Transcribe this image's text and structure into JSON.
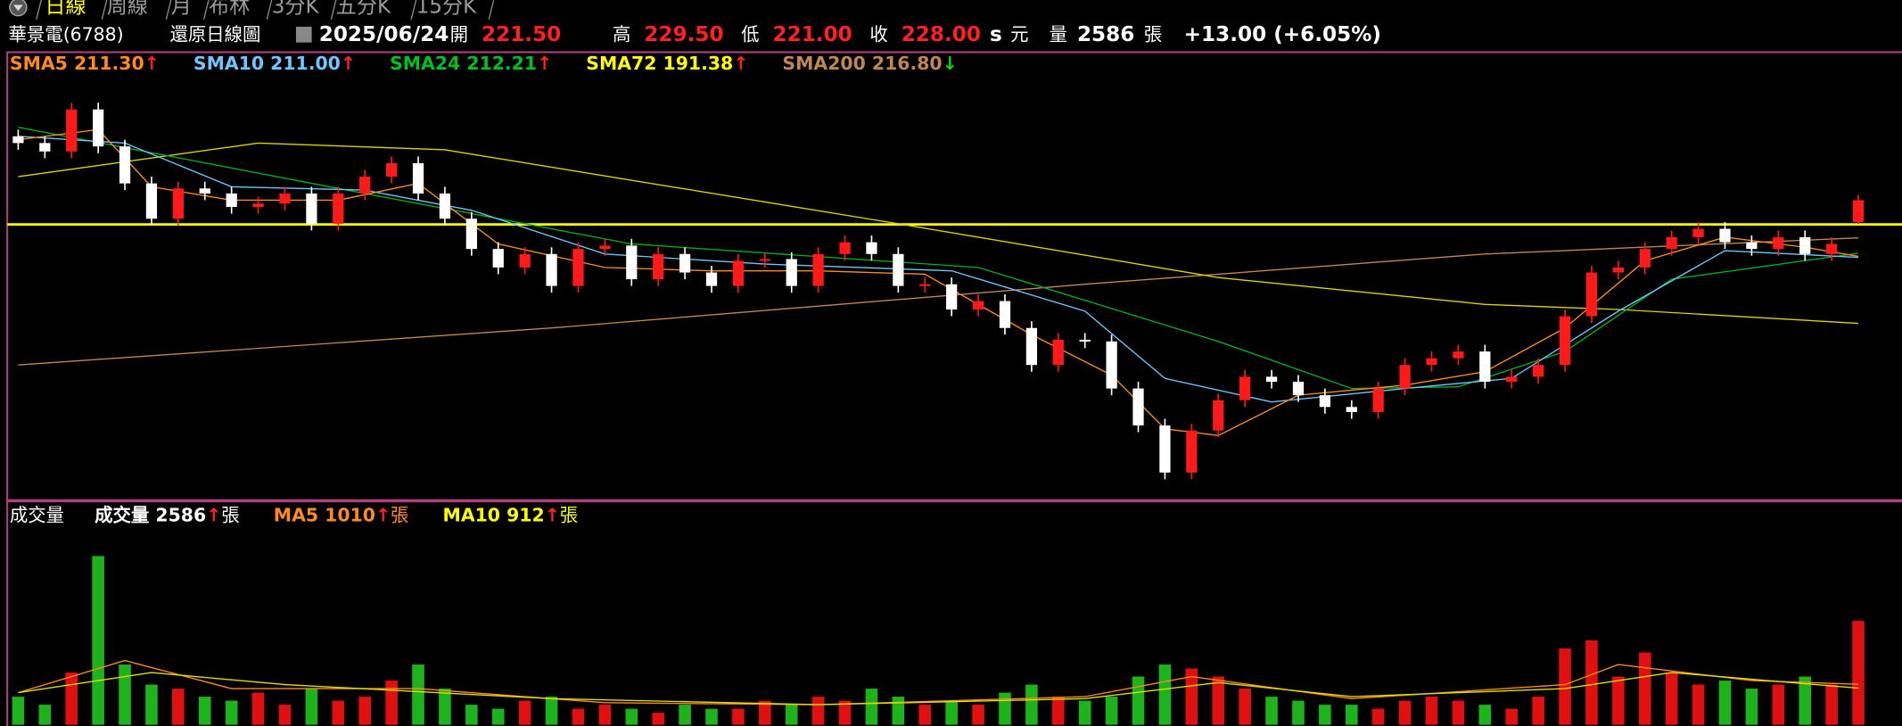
{
  "tabs": [
    "日線",
    "周線",
    "月",
    "布林",
    "3分K",
    "五分K",
    "15分K"
  ],
  "header": {
    "stock": "華景電(6788)",
    "mode": "還原日線圖",
    "date": "2025/06/24",
    "open_label": "開",
    "open": "221.50",
    "high_label": "高",
    "high": "229.50",
    "low_label": "低",
    "low": "221.00",
    "close_label": "收",
    "close": "228.00",
    "s": "s",
    "currency": "元",
    "volume_label": "量",
    "volume": "2586",
    "unit": "張",
    "change": "+13.00 (+6.05%)"
  },
  "chart_data": [
    {
      "type": "candlestick",
      "legend": [
        {
          "label": "SMA5 211.30",
          "trend": "↑",
          "color": "#ff8c1a",
          "trend_color": "#ff2020"
        },
        {
          "label": "SMA10 211.00",
          "trend": "↑",
          "color": "#6ec6ff",
          "trend_color": "#ff2020"
        },
        {
          "label": "SMA24 212.21",
          "trend": "↑",
          "color": "#00c020",
          "trend_color": "#ff2020"
        },
        {
          "label": "SMA72 191.38",
          "trend": "↑",
          "color": "#ffff00",
          "trend_color": "#ff2020"
        },
        {
          "label": "SMA200 216.80",
          "trend": "↓",
          "color": "#c08850",
          "trend_color": "#00e000"
        }
      ],
      "ylim": [
        139.5,
        271.3
      ],
      "up_color": "#ff1a1a",
      "down_color": "#ffffff",
      "reference_line": 220.8,
      "reference_color": "#ffff00",
      "open": [
        247,
        245,
        242.5,
        255,
        244,
        233,
        222.5,
        231.5,
        230,
        226,
        227,
        230,
        221,
        230,
        235,
        239,
        230,
        222.5,
        213.5,
        208,
        212,
        202.5,
        213.5,
        214.5,
        204.5,
        212,
        206.5,
        202.5,
        210,
        210.5,
        202.5,
        212,
        215.5,
        212,
        202.5,
        203,
        195.5,
        198,
        190,
        179,
        186.5,
        186,
        172,
        161,
        147,
        159.5,
        168.5,
        175.5,
        174,
        170,
        166.5,
        165,
        172,
        179,
        181,
        183,
        174,
        175.5,
        179,
        193.5,
        206.5,
        208,
        213.5,
        217,
        219.5,
        215.5,
        213.5,
        217,
        212,
        221.5
      ],
      "high": [
        249,
        247,
        257,
        257,
        246,
        235,
        233.5,
        233.5,
        232,
        229,
        232,
        232,
        232,
        237,
        241,
        241,
        232,
        224.5,
        215.5,
        214,
        214,
        215.5,
        216.5,
        216.5,
        214,
        214,
        208.5,
        212,
        212.5,
        212.5,
        214,
        217.5,
        217.5,
        214,
        205,
        205,
        200,
        200,
        192,
        188.5,
        188.5,
        188,
        174,
        163,
        161.5,
        170.5,
        177.5,
        177.5,
        176,
        172,
        168.5,
        174,
        181,
        183,
        185,
        185,
        177.5,
        181,
        195.5,
        208.5,
        210,
        215.5,
        219,
        221.5,
        221.5,
        217.5,
        219,
        219,
        217,
        229.5
      ],
      "low": [
        243,
        240.5,
        240.5,
        242,
        231,
        220.5,
        220.5,
        228,
        224,
        224,
        225,
        219,
        219,
        228,
        233,
        228,
        220.5,
        211.5,
        206,
        206,
        200.5,
        200.5,
        211.5,
        202.5,
        202.5,
        204.5,
        200.5,
        200.5,
        208,
        200.5,
        200.5,
        210,
        210,
        200.5,
        200.5,
        193.5,
        193.5,
        188,
        177,
        177,
        184,
        170,
        159,
        145,
        145,
        157.5,
        166.5,
        172,
        168,
        164.5,
        163,
        163,
        170,
        177,
        179,
        172,
        172,
        173.5,
        177,
        191.5,
        204.5,
        206,
        211.5,
        215,
        213.5,
        211.5,
        211.5,
        210,
        210,
        221
      ],
      "close": [
        245,
        242.5,
        255,
        244,
        233,
        222.5,
        231.5,
        230,
        226,
        227,
        230,
        221,
        230,
        235,
        239,
        230,
        222.5,
        213.5,
        208,
        212,
        202.5,
        213.5,
        214.5,
        204.5,
        212,
        206.5,
        202.5,
        210,
        210.5,
        202.5,
        212,
        215.5,
        212,
        202.5,
        203,
        195.5,
        198,
        190,
        179,
        186.5,
        186,
        172,
        161,
        147,
        159.5,
        168.5,
        175.5,
        174,
        170,
        166.5,
        165,
        172,
        179,
        181,
        183,
        174,
        175.5,
        179,
        193.5,
        206.5,
        208,
        213.5,
        217,
        219.5,
        215.5,
        213.5,
        217,
        212,
        215,
        228
      ],
      "series": [
        {
          "color": "#c08850",
          "x": [
            0,
            20,
            40,
            55,
            69
          ],
          "values": [
            179,
            190,
            203,
            212,
            216.8
          ]
        },
        {
          "color": "#d8d800",
          "x": [
            0,
            9,
            16,
            33,
            45,
            55,
            60,
            69
          ],
          "values": [
            235,
            245,
            243,
            221,
            205,
            197,
            195.5,
            191.38
          ]
        },
        {
          "color": "#00b020",
          "x": [
            0,
            13,
            23,
            36,
            45,
            50,
            54,
            58,
            62,
            69
          ],
          "values": [
            249.7,
            230,
            215,
            208,
            186,
            172,
            172.5,
            183,
            204.5,
            212.21
          ]
        },
        {
          "color": "#6ec6ff",
          "x": [
            0,
            4,
            8,
            13,
            17,
            22,
            28,
            35,
            40,
            43,
            47,
            52,
            56,
            60,
            64,
            69
          ],
          "values": [
            247,
            245,
            232,
            231,
            225,
            212,
            209,
            207,
            195,
            175,
            168,
            172,
            175,
            195,
            213,
            211
          ]
        },
        {
          "color": "#ff8c1a",
          "x": [
            0,
            3,
            5,
            8,
            12,
            15,
            18,
            22,
            26,
            30,
            34,
            38,
            41,
            43,
            45,
            48,
            52,
            55,
            58,
            61,
            64,
            67,
            69
          ],
          "values": [
            246,
            249,
            232,
            228,
            228,
            233,
            215,
            208,
            207,
            207,
            206,
            188,
            176,
            160,
            158,
            170,
            173,
            177,
            190,
            210,
            217,
            214,
            211.3
          ]
        }
      ]
    },
    {
      "type": "bar",
      "title": "成交量",
      "legend": [
        {
          "label": "成交量 2586",
          "trend": "↑",
          "unit": "張",
          "color": "#ffffff",
          "trend_color": "#ff2020"
        },
        {
          "label": "MA5 1010",
          "trend": "↑",
          "unit": "張",
          "color": "#ff8c1a",
          "trend_color": "#ff2020"
        },
        {
          "label": "MA10 912",
          "trend": "↑",
          "unit": "張",
          "color": "#ffff00",
          "trend_color": "#ff2020"
        }
      ],
      "ylim": [
        0,
        5500
      ],
      "up_color": "#e01010",
      "down_color": "#1db31d",
      "values": [
        700,
        500,
        1300,
        4200,
        1500,
        1000,
        900,
        700,
        600,
        800,
        500,
        900,
        600,
        700,
        1100,
        1500,
        900,
        500,
        400,
        600,
        700,
        400,
        500,
        400,
        300,
        500,
        400,
        400,
        600,
        500,
        700,
        600,
        900,
        700,
        500,
        600,
        500,
        800,
        1000,
        700,
        600,
        700,
        1200,
        1500,
        1400,
        1200,
        900,
        700,
        600,
        500,
        500,
        400,
        600,
        700,
        600,
        500,
        400,
        700,
        1900,
        2100,
        1200,
        1800,
        1300,
        1000,
        1100,
        900,
        1000,
        1200,
        1000,
        2586
      ],
      "series": [
        {
          "color": "#ff8c1a",
          "x": [
            0,
            4,
            8,
            15,
            22,
            30,
            40,
            44,
            50,
            58,
            60,
            65,
            69
          ],
          "values": [
            800,
            1600,
            900,
            900,
            550,
            500,
            700,
            1200,
            650,
            1000,
            1500,
            1100,
            1010
          ]
        },
        {
          "color": "#e0e000",
          "x": [
            0,
            5,
            10,
            20,
            30,
            40,
            45,
            50,
            58,
            62,
            69
          ],
          "values": [
            800,
            1300,
            1000,
            650,
            500,
            650,
            1050,
            700,
            900,
            1300,
            912
          ]
        }
      ]
    }
  ]
}
